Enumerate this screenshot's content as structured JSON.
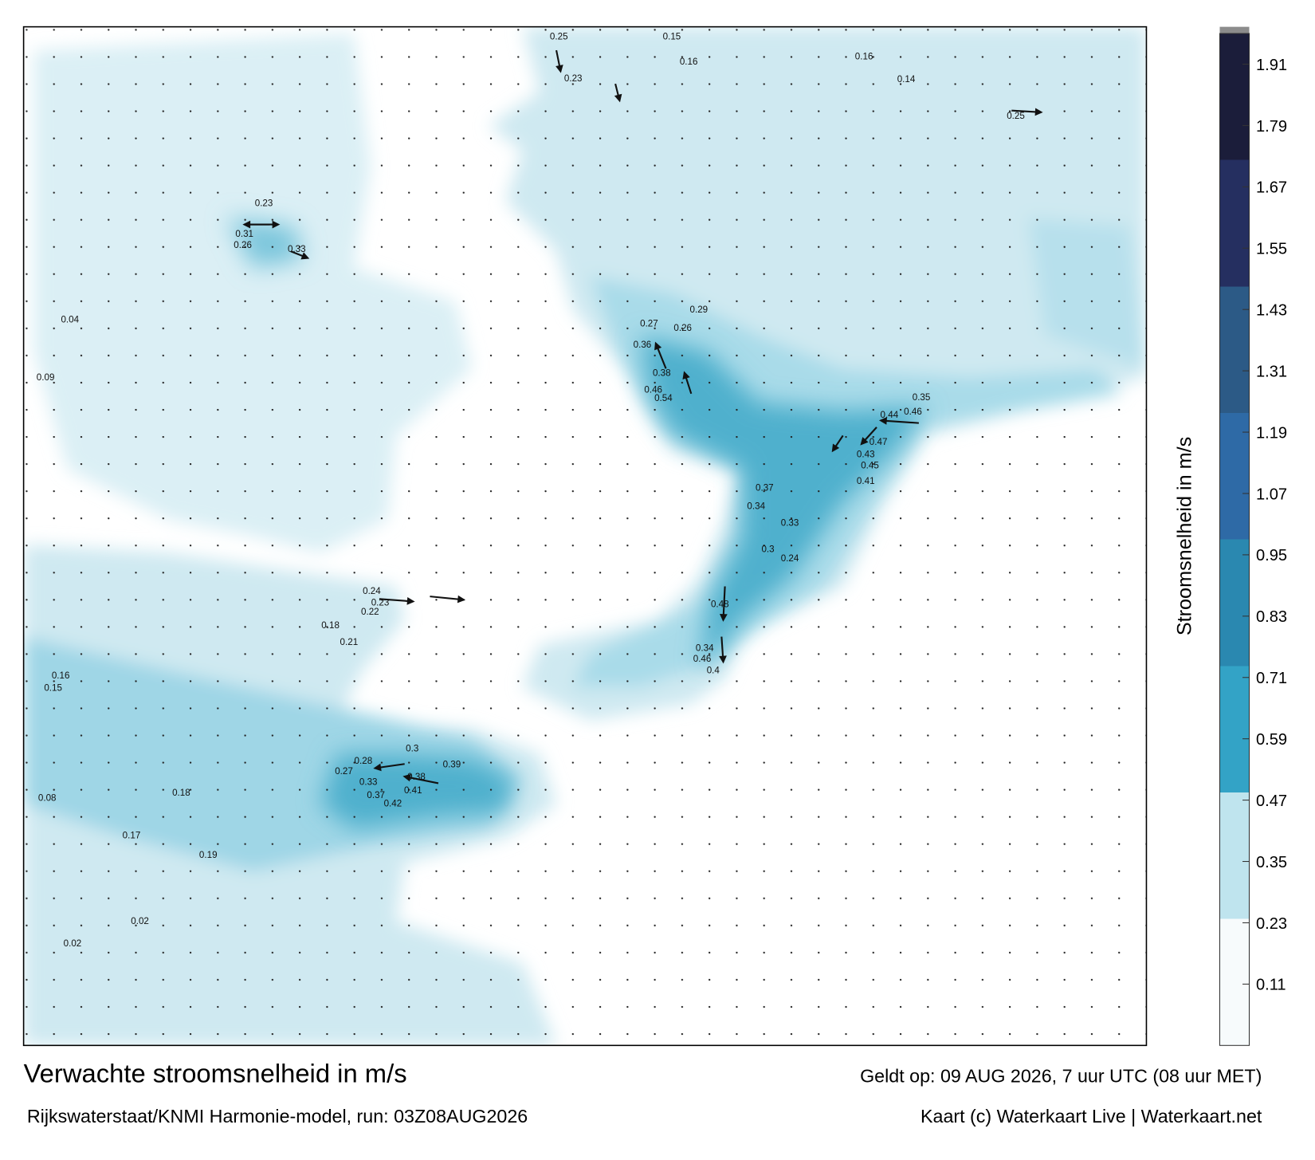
{
  "title": "Verwachte stroomsnelheid in m/s",
  "subtitle": "Rijkswaterstaat/KNMI Harmonie-model, run: 03Z08AUG2026",
  "valid_time": "Geldt op: 09 AUG 2026, 7 uur UTC (08 uur MET)",
  "credit": "Kaart (c) Waterkaart Live | Waterkaart.net",
  "colorbar": {
    "label": "Stroomsnelheid in m/s",
    "lim": [
      -0.01,
      1.97
    ],
    "ticks": [
      0.11,
      0.23,
      0.35,
      0.47,
      0.59,
      0.71,
      0.83,
      0.95,
      1.07,
      1.19,
      1.31,
      1.43,
      1.55,
      1.67,
      1.79,
      1.91
    ],
    "colors": [
      "#f7fbfc",
      "#bfe4ee",
      "#33a3c6",
      "#2a88b0",
      "#2e6aa6",
      "#2c5a86",
      "#252f60",
      "#1b1d3a"
    ]
  },
  "map_labels": [
    0.31,
    0.26,
    0.33,
    0.23,
    0.38,
    0.46,
    0.54,
    0.36,
    0.27,
    0.26,
    0.29,
    0.44,
    0.46,
    0.35,
    0.47,
    0.43,
    0.45,
    0.41,
    0.37,
    0.34,
    0.33,
    0.3,
    0.24,
    0.48,
    0.34,
    0.46,
    0.4,
    0.39,
    0.38,
    0.41,
    0.42,
    0.37,
    0.33,
    0.28,
    0.3,
    0.27,
    0.24,
    0.23,
    0.22,
    0.15,
    0.16,
    0.25,
    0.23,
    0.25,
    0.16,
    0.14,
    0.18,
    0.21,
    0.16,
    0.15,
    0.18,
    0.19,
    0.17,
    0.08,
    0.02,
    0.02,
    0.04,
    0.09
  ]
}
